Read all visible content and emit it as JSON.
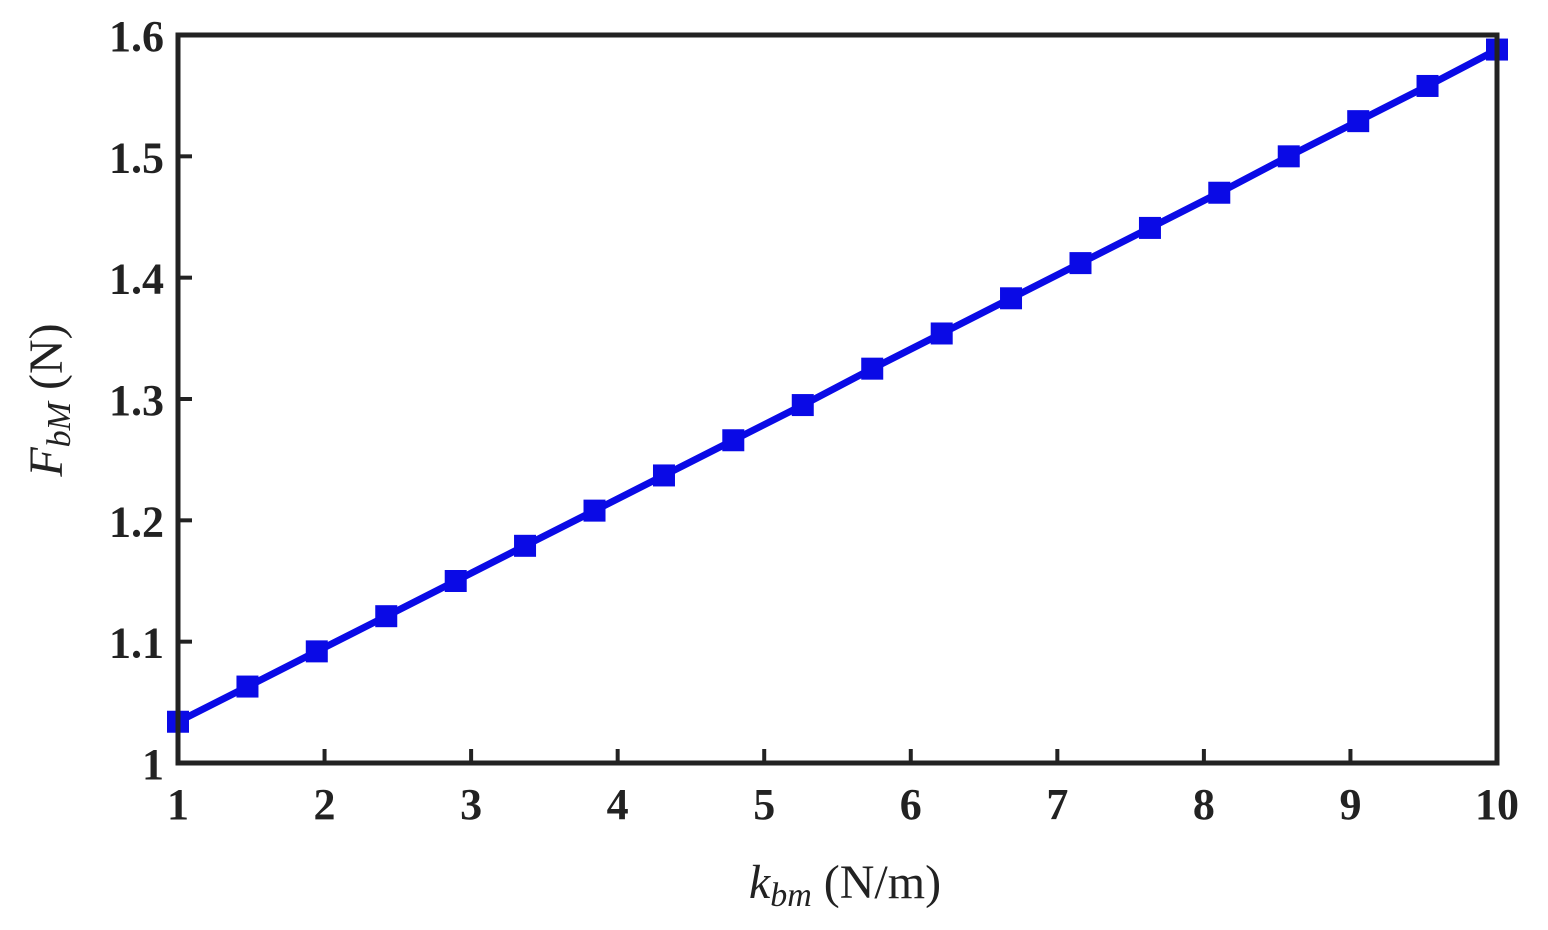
{
  "chart_data": {
    "type": "line",
    "title": "",
    "xlabel": {
      "var": "k",
      "sub": "bm",
      "unit": " (N/m)"
    },
    "ylabel": {
      "var": "F",
      "sub": "bM",
      "unit": " (N)"
    },
    "xlim": [
      1,
      10
    ],
    "ylim": [
      1,
      1.6
    ],
    "xticks": [
      1,
      2,
      3,
      4,
      5,
      6,
      7,
      8,
      9,
      10
    ],
    "yticks": [
      1,
      1.1,
      1.2,
      1.3,
      1.4,
      1.5,
      1.6
    ],
    "ytick_labels": [
      "1",
      "1.1",
      "1.2",
      "1.3",
      "1.4",
      "1.5",
      "1.6"
    ],
    "grid": false,
    "legend": "none",
    "series": [
      {
        "color": "#0a0ae6",
        "marker": "square",
        "x": [
          1,
          1.474,
          1.947,
          2.421,
          2.895,
          3.368,
          3.842,
          4.316,
          4.789,
          5.263,
          5.737,
          6.211,
          6.684,
          7.158,
          7.632,
          8.105,
          8.579,
          9.053,
          9.526,
          10
        ],
        "y": [
          1.034,
          1.063,
          1.092,
          1.121,
          1.15,
          1.179,
          1.208,
          1.237,
          1.266,
          1.295,
          1.325,
          1.354,
          1.383,
          1.412,
          1.441,
          1.47,
          1.5,
          1.529,
          1.558,
          1.588
        ]
      }
    ]
  }
}
